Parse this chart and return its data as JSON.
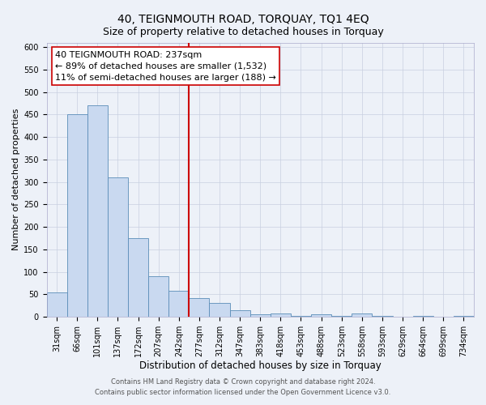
{
  "title": "40, TEIGNMOUTH ROAD, TORQUAY, TQ1 4EQ",
  "subtitle": "Size of property relative to detached houses in Torquay",
  "xlabel": "Distribution of detached houses by size in Torquay",
  "ylabel": "Number of detached properties",
  "bar_labels": [
    "31sqm",
    "66sqm",
    "101sqm",
    "137sqm",
    "172sqm",
    "207sqm",
    "242sqm",
    "277sqm",
    "312sqm",
    "347sqm",
    "383sqm",
    "418sqm",
    "453sqm",
    "488sqm",
    "523sqm",
    "558sqm",
    "593sqm",
    "629sqm",
    "664sqm",
    "699sqm",
    "734sqm"
  ],
  "bar_values": [
    55,
    450,
    470,
    310,
    175,
    90,
    58,
    42,
    30,
    15,
    5,
    8,
    2,
    5,
    2,
    8,
    2,
    1,
    2,
    0,
    2
  ],
  "bar_color": "#c9d9f0",
  "bar_edge_color": "#5b8db8",
  "vline_x": 6.5,
  "vline_color": "#cc0000",
  "annotation_text": "40 TEIGNMOUTH ROAD: 237sqm\n← 89% of detached houses are smaller (1,532)\n11% of semi-detached houses are larger (188) →",
  "annotation_box_edge": "#cc0000",
  "ylim": [
    0,
    610
  ],
  "yticks": [
    0,
    50,
    100,
    150,
    200,
    250,
    300,
    350,
    400,
    450,
    500,
    550,
    600
  ],
  "footer1": "Contains HM Land Registry data © Crown copyright and database right 2024.",
  "footer2": "Contains public sector information licensed under the Open Government Licence v3.0.",
  "bg_color": "#edf1f8",
  "plot_bg_color": "#edf1f8",
  "grid_color": "#c8cfe0",
  "title_fontsize": 10,
  "subtitle_fontsize": 9,
  "xlabel_fontsize": 8.5,
  "ylabel_fontsize": 8,
  "tick_fontsize": 7,
  "annotation_fontsize": 8,
  "footer_fontsize": 6
}
